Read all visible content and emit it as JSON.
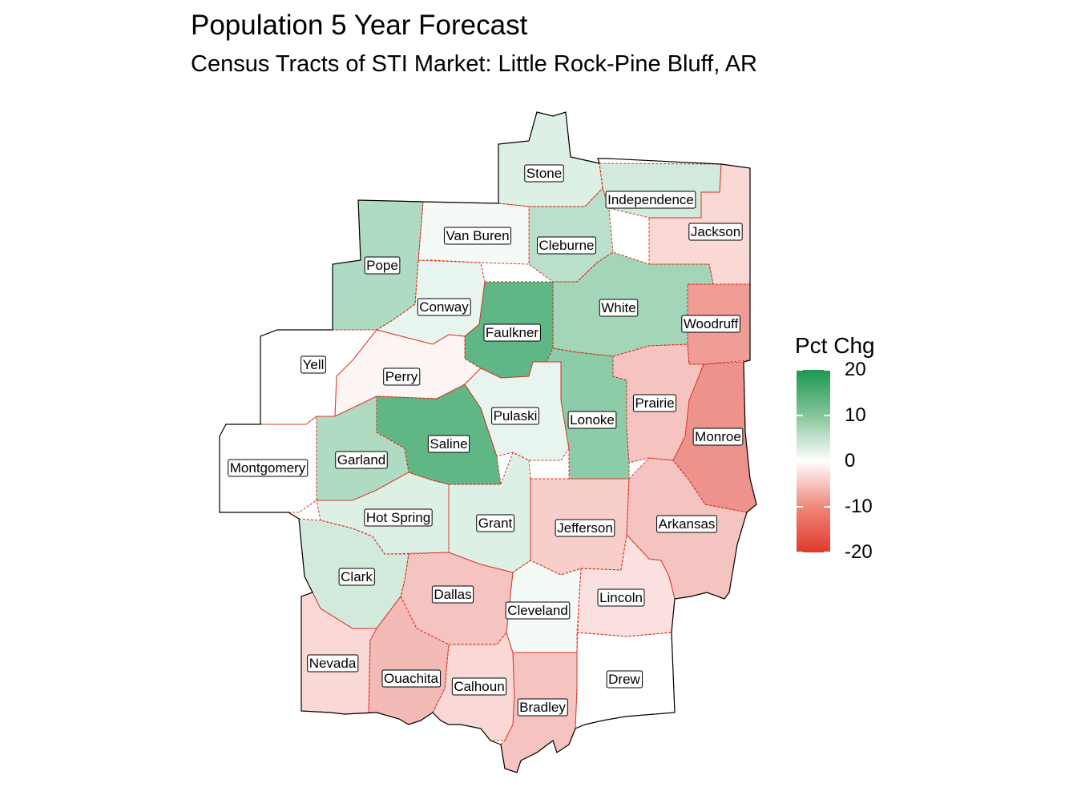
{
  "title": "Population 5 Year Forecast",
  "subtitle": "Census Tracts of STI Market: Little Rock-Pine Bluff, AR",
  "legend": {
    "title": "Pct Chg",
    "ticks": [
      "20",
      "10",
      "0",
      "-10",
      "-20"
    ],
    "tick_values": [
      20,
      10,
      0,
      -10,
      -20
    ],
    "colors": {
      "high": "#1a9850",
      "mid": "#ffffff",
      "low": "#e03a2c"
    }
  },
  "colors": {
    "county_border": "#d7301f",
    "market_outline": "#000000"
  },
  "counties": [
    {
      "name": "Stone",
      "pct_chg": 3
    },
    {
      "name": "Independence",
      "pct_chg": 4
    },
    {
      "name": "Jackson",
      "pct_chg": -4
    },
    {
      "name": "Van Buren",
      "pct_chg": 1
    },
    {
      "name": "Cleburne",
      "pct_chg": 6
    },
    {
      "name": "Pope",
      "pct_chg": 7
    },
    {
      "name": "Conway",
      "pct_chg": 2
    },
    {
      "name": "White",
      "pct_chg": 8
    },
    {
      "name": "Faulkner",
      "pct_chg": 14
    },
    {
      "name": "Woodruff",
      "pct_chg": -10
    },
    {
      "name": "Yell",
      "pct_chg": 0
    },
    {
      "name": "Perry",
      "pct_chg": -1
    },
    {
      "name": "Prairie",
      "pct_chg": -6
    },
    {
      "name": "Pulaski",
      "pct_chg": 2
    },
    {
      "name": "Lonoke",
      "pct_chg": 10
    },
    {
      "name": "Saline",
      "pct_chg": 14
    },
    {
      "name": "Monroe",
      "pct_chg": -11
    },
    {
      "name": "Montgomery",
      "pct_chg": 0
    },
    {
      "name": "Garland",
      "pct_chg": 7
    },
    {
      "name": "Hot Spring",
      "pct_chg": 3
    },
    {
      "name": "Grant",
      "pct_chg": 3
    },
    {
      "name": "Jefferson",
      "pct_chg": -5
    },
    {
      "name": "Arkansas",
      "pct_chg": -6
    },
    {
      "name": "Clark",
      "pct_chg": 4
    },
    {
      "name": "Dallas",
      "pct_chg": -6
    },
    {
      "name": "Cleveland",
      "pct_chg": 1
    },
    {
      "name": "Lincoln",
      "pct_chg": -3
    },
    {
      "name": "Nevada",
      "pct_chg": -4
    },
    {
      "name": "Ouachita",
      "pct_chg": -7
    },
    {
      "name": "Calhoun",
      "pct_chg": -4
    },
    {
      "name": "Bradley",
      "pct_chg": -6
    },
    {
      "name": "Drew",
      "pct_chg": 0
    }
  ]
}
